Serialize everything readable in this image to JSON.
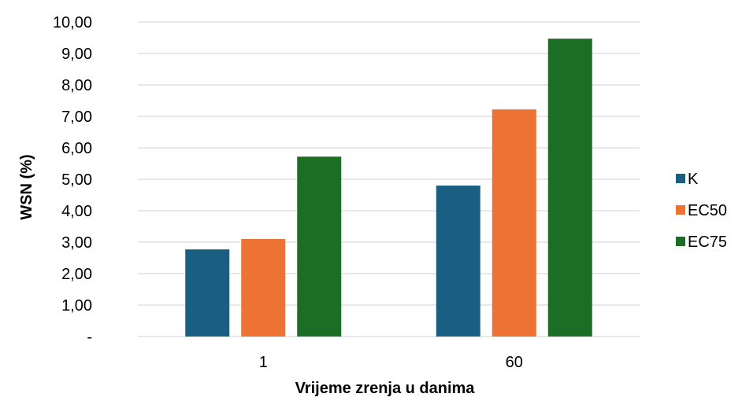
{
  "chart_data": {
    "type": "bar",
    "title": "",
    "xlabel": "Vrijeme zrenja u danima",
    "ylabel": "WSN (%)",
    "categories": [
      "1",
      "60"
    ],
    "series": [
      {
        "name": "K",
        "color": "#1a5f82",
        "values": [
          2.77,
          4.8
        ]
      },
      {
        "name": "EC50",
        "color": "#ec7333",
        "values": [
          3.1,
          7.22
        ]
      },
      {
        "name": "EC75",
        "color": "#1c6e27",
        "values": [
          5.72,
          9.47
        ]
      }
    ],
    "ylim": [
      0,
      10
    ],
    "yticks": [
      {
        "value": 0,
        "label": "-"
      },
      {
        "value": 1,
        "label": "1,00"
      },
      {
        "value": 2,
        "label": "2,00"
      },
      {
        "value": 3,
        "label": "3,00"
      },
      {
        "value": 4,
        "label": "4,00"
      },
      {
        "value": 5,
        "label": "5,00"
      },
      {
        "value": 6,
        "label": "6,00"
      },
      {
        "value": 7,
        "label": "7,00"
      },
      {
        "value": 8,
        "label": "8,00"
      },
      {
        "value": 9,
        "label": "9,00"
      },
      {
        "value": 10,
        "label": "10,00"
      }
    ],
    "grid": true,
    "legend": "right"
  }
}
